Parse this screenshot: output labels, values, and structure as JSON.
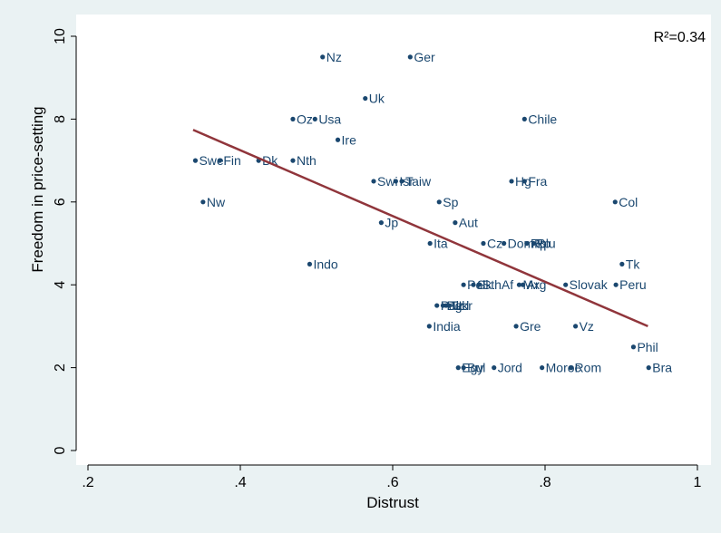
{
  "chart_data": {
    "type": "scatter",
    "xlabel": "Distrust",
    "ylabel": "Freedom in price-setting",
    "annotation": "R²=0.34",
    "xlim": [
      0.2,
      1.0
    ],
    "ylim": [
      0,
      10
    ],
    "x_ticks": [
      ".2",
      ".4",
      ".6",
      ".8",
      "1"
    ],
    "y_ticks": [
      "0",
      "2",
      "4",
      "6",
      "8",
      "10"
    ],
    "grid": false,
    "colors": {
      "marker": "#1a476f",
      "fit": "#90353b",
      "plot_bg": "#ffffff",
      "outer_bg": "#eaf2f3"
    },
    "points": [
      {
        "label": "Nz",
        "x": 0.508,
        "y": 9.5
      },
      {
        "label": "Ger",
        "x": 0.623,
        "y": 9.5
      },
      {
        "label": "Uk",
        "x": 0.564,
        "y": 8.5
      },
      {
        "label": "Oz",
        "x": 0.469,
        "y": 8.0
      },
      {
        "label": "Usa",
        "x": 0.498,
        "y": 8.0
      },
      {
        "label": "Chile",
        "x": 0.773,
        "y": 8.0
      },
      {
        "label": "Ire",
        "x": 0.528,
        "y": 7.5
      },
      {
        "label": "Swe",
        "x": 0.341,
        "y": 7.0
      },
      {
        "label": "Fin",
        "x": 0.373,
        "y": 7.0
      },
      {
        "label": "Dk",
        "x": 0.424,
        "y": 7.0
      },
      {
        "label": "Nth",
        "x": 0.469,
        "y": 7.0
      },
      {
        "label": "Swi",
        "x": 0.575,
        "y": 6.5
      },
      {
        "label": "Isr",
        "x": 0.604,
        "y": 6.5
      },
      {
        "label": "Taiw",
        "x": 0.612,
        "y": 6.5
      },
      {
        "label": "Hg",
        "x": 0.756,
        "y": 6.5
      },
      {
        "label": "Fra",
        "x": 0.773,
        "y": 6.5
      },
      {
        "label": "Nw",
        "x": 0.351,
        "y": 6.0
      },
      {
        "label": "Sp",
        "x": 0.661,
        "y": 6.0
      },
      {
        "label": "Col",
        "x": 0.892,
        "y": 6.0
      },
      {
        "label": "Jp",
        "x": 0.585,
        "y": 5.5
      },
      {
        "label": "Aut",
        "x": 0.682,
        "y": 5.5
      },
      {
        "label": "Ita",
        "x": 0.649,
        "y": 5.0
      },
      {
        "label": "Cz",
        "x": 0.719,
        "y": 5.0
      },
      {
        "label": "DomRp",
        "x": 0.746,
        "y": 5.0
      },
      {
        "label": "Rp",
        "x": 0.776,
        "y": 5.0
      },
      {
        "label": "Blu",
        "x": 0.785,
        "y": 5.0
      },
      {
        "label": "Tk",
        "x": 0.901,
        "y": 4.5
      },
      {
        "label": "Indo",
        "x": 0.491,
        "y": 4.5
      },
      {
        "label": "Pol",
        "x": 0.693,
        "y": 4.0
      },
      {
        "label": "Sk",
        "x": 0.706,
        "y": 4.0
      },
      {
        "label": "SthAf",
        "x": 0.713,
        "y": 4.0
      },
      {
        "label": "Mx",
        "x": 0.766,
        "y": 4.0
      },
      {
        "label": "Arg",
        "x": 0.771,
        "y": 4.0
      },
      {
        "label": "Slovak",
        "x": 0.827,
        "y": 4.0
      },
      {
        "label": "Peru",
        "x": 0.893,
        "y": 4.0
      },
      {
        "label": "Pak",
        "x": 0.658,
        "y": 3.5
      },
      {
        "label": "Bgd",
        "x": 0.666,
        "y": 3.5
      },
      {
        "label": "Tz",
        "x": 0.67,
        "y": 3.5
      },
      {
        "label": "Ukr",
        "x": 0.674,
        "y": 3.5
      },
      {
        "label": "India",
        "x": 0.648,
        "y": 3.0
      },
      {
        "label": "Gre",
        "x": 0.762,
        "y": 3.0
      },
      {
        "label": "Vz",
        "x": 0.84,
        "y": 3.0
      },
      {
        "label": "Phil",
        "x": 0.916,
        "y": 2.5
      },
      {
        "label": "Egy",
        "x": 0.686,
        "y": 2.0
      },
      {
        "label": "Bul",
        "x": 0.693,
        "y": 2.0
      },
      {
        "label": "Jord",
        "x": 0.733,
        "y": 2.0
      },
      {
        "label": "Moroc",
        "x": 0.796,
        "y": 2.0
      },
      {
        "label": "Rom",
        "x": 0.834,
        "y": 2.0
      },
      {
        "label": "Bra",
        "x": 0.936,
        "y": 2.0
      }
    ],
    "fit_line": {
      "x": [
        0.338,
        0.935
      ],
      "y": [
        7.74,
        3.0
      ]
    }
  }
}
